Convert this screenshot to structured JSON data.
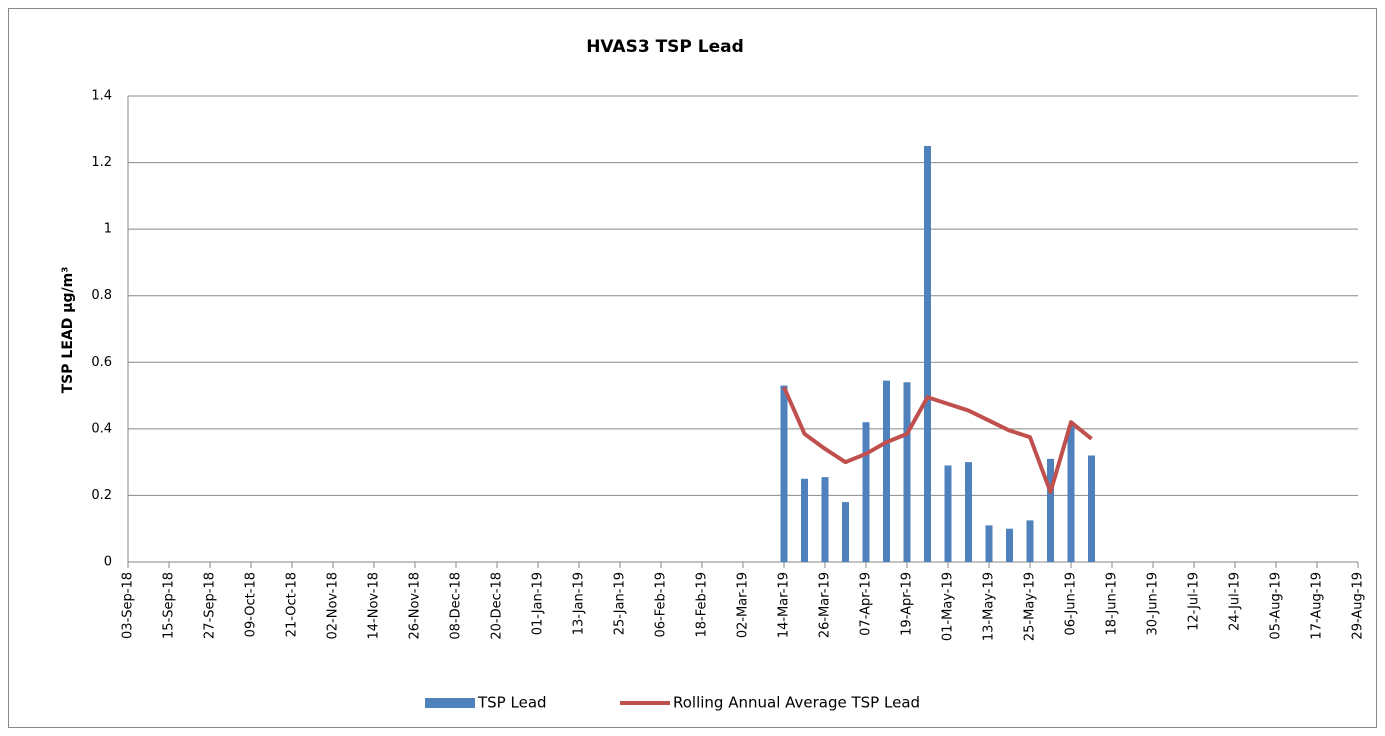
{
  "chart_data": {
    "type": "bar_line",
    "title": "HVAS3 TSP Lead",
    "y_label": "TSP LEAD µg/m³",
    "categories": [
      "03-Sep-18",
      null,
      "15-Sep-18",
      null,
      "27-Sep-18",
      null,
      "09-Oct-18",
      null,
      "21-Oct-18",
      null,
      "02-Nov-18",
      null,
      "14-Nov-18",
      null,
      "26-Nov-18",
      null,
      "08-Dec-18",
      null,
      "20-Dec-18",
      null,
      "01-Jan-19",
      null,
      "13-Jan-19",
      null,
      "25-Jan-19",
      null,
      "06-Feb-19",
      null,
      "18-Feb-19",
      null,
      "02-Mar-19",
      null,
      "14-Mar-19",
      null,
      "26-Mar-19",
      null,
      "07-Apr-19",
      null,
      "19-Apr-19",
      null,
      "01-May-19",
      null,
      "13-May-19",
      null,
      "25-May-19",
      null,
      "06-Jun-19",
      null,
      "18-Jun-19",
      null,
      "30-Jun-19",
      null,
      "12-Jul-19",
      null,
      "24-Jul-19",
      null,
      "05-Aug-19",
      null,
      "17-Aug-19",
      null,
      "29-Aug-19"
    ],
    "series": [
      {
        "name": "TSP Lead",
        "kind": "bar",
        "color": "#4f81bd",
        "values": [
          null,
          null,
          null,
          null,
          null,
          null,
          null,
          null,
          null,
          null,
          null,
          null,
          null,
          null,
          null,
          null,
          null,
          null,
          null,
          null,
          null,
          null,
          null,
          null,
          null,
          null,
          null,
          null,
          null,
          null,
          null,
          null,
          0.53,
          0.25,
          0.255,
          0.18,
          0.42,
          0.545,
          0.54,
          1.25,
          0.29,
          0.3,
          0.11,
          0.1,
          0.125,
          0.31,
          0.41,
          0.32,
          null,
          null,
          null,
          null,
          null,
          null,
          null,
          null,
          null,
          null,
          null,
          null,
          null
        ]
      },
      {
        "name": "Rolling Annual Average TSP Lead",
        "kind": "line",
        "color": "#c0504d",
        "values": [
          null,
          null,
          null,
          null,
          null,
          null,
          null,
          null,
          null,
          null,
          null,
          null,
          null,
          null,
          null,
          null,
          null,
          null,
          null,
          null,
          null,
          null,
          null,
          null,
          null,
          null,
          null,
          null,
          null,
          null,
          null,
          null,
          0.525,
          0.385,
          0.34,
          0.3,
          0.325,
          0.36,
          0.385,
          0.495,
          0.475,
          0.455,
          0.425,
          0.395,
          0.375,
          0.21,
          0.42,
          0.37,
          null,
          null,
          null,
          null,
          null,
          null,
          null,
          null,
          null,
          null,
          null,
          null,
          null
        ]
      }
    ],
    "ylim": [
      0,
      1.4
    ],
    "yticks": [
      0,
      0.2,
      0.4,
      0.6,
      0.8,
      1,
      1.2,
      1.4
    ],
    "grid": true,
    "legend": "bottom"
  }
}
